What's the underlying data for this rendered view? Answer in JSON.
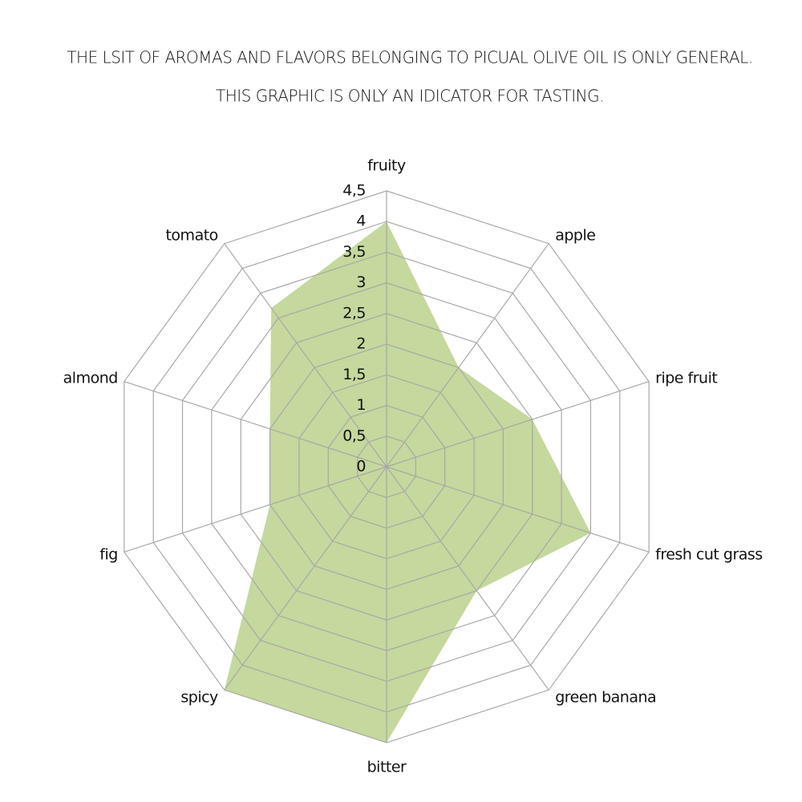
{
  "chart_data": {
    "type": "radar",
    "title_lines": [
      "THE LSIT OF AROMAS AND FLAVORS BELONGING TO PICUAL OLIVE OIL IS ONLY GENERAL.",
      "THIS GRAPHIC IS ONLY AN IDICATOR FOR TASTING."
    ],
    "categories": [
      "fruity",
      "apple",
      "ripe fruit",
      "fresh cut grass",
      "green banana",
      "bitter",
      "spicy",
      "fig",
      "almond",
      "tomato"
    ],
    "values": [
      4,
      2,
      2.5,
      3.5,
      2.5,
      4.5,
      4.5,
      2,
      2,
      3.2
    ],
    "color": "#c5d89d",
    "rlim": [
      0,
      4.5
    ],
    "rticks": [
      0,
      {
        "value": 0.5,
        "label": "0,5"
      },
      1,
      {
        "value": 1.5,
        "label": "1,5"
      },
      2,
      {
        "value": 2.5,
        "label": "2,5"
      },
      3,
      {
        "value": 3.5,
        "label": "3,5"
      },
      4,
      {
        "value": 4.5,
        "label": "4,5"
      }
    ],
    "grid": true
  }
}
